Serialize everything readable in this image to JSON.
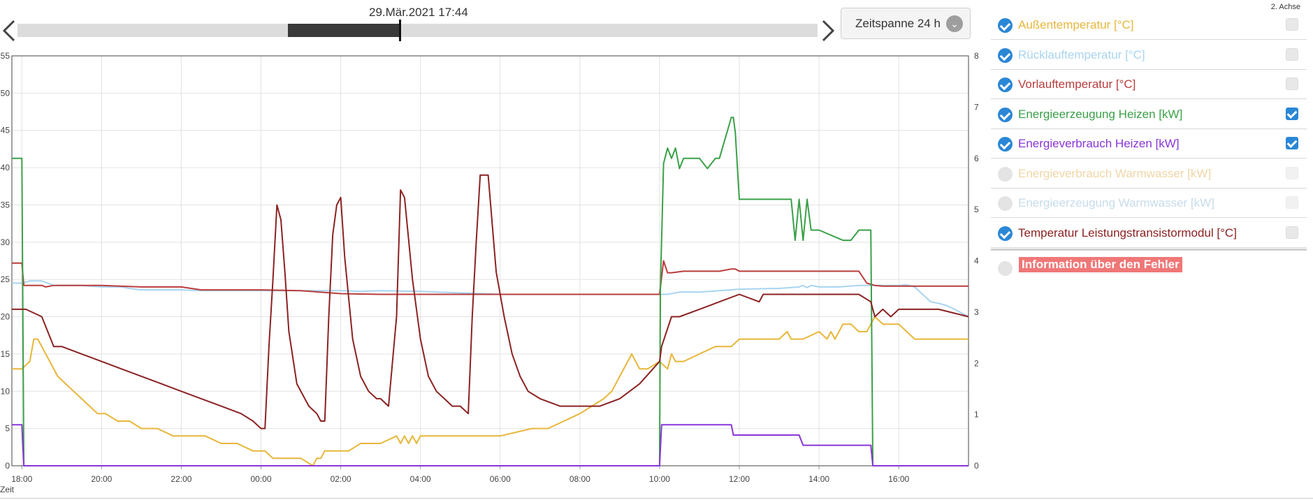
{
  "header": {
    "datetime": "29.Mär.2021 17:44",
    "timespan_label": "Zeitspanne 24 h",
    "prev_icon": "chevron-left-icon",
    "next_icon": "chevron-right-icon",
    "dropdown_icon": "chevron-down-icon",
    "timeline_window": [
      0.338,
      0.478
    ],
    "timeline_cursor": 0.478
  },
  "legend": {
    "axis2_header": "2. Achse",
    "items": [
      {
        "label": "Außentemperatur [°C]",
        "color": "#e8b63a",
        "checked": true,
        "axis2": false,
        "disabled": false
      },
      {
        "label": "Rücklauftemperatur [°C]",
        "color": "#a8d4f0",
        "checked": true,
        "axis2": false,
        "disabled": false
      },
      {
        "label": "Vorlauftemperatur [°C]",
        "color": "#b93c3c",
        "checked": true,
        "axis2": false,
        "disabled": false
      },
      {
        "label": "Energieerzeugung Heizen [kW]",
        "color": "#3aa048",
        "checked": true,
        "axis2": true,
        "disabled": false
      },
      {
        "label": "Energieverbrauch Heizen [kW]",
        "color": "#8a35d8",
        "checked": true,
        "axis2": true,
        "disabled": false
      },
      {
        "label": "Energieverbrauch Warmwasser [kW]",
        "color": "#efd6a6",
        "checked": false,
        "axis2": false,
        "disabled": true
      },
      {
        "label": "Energieerzeugung Warmwasser [kW]",
        "color": "#c6dcea",
        "checked": false,
        "axis2": false,
        "disabled": true
      },
      {
        "label": "Temperatur Leistungstransistormodul [°C]",
        "color": "#8b2222",
        "checked": true,
        "axis2": false,
        "disabled": false
      }
    ],
    "error_label": "Information über den Fehler"
  },
  "chart_data": {
    "type": "line",
    "xlabel": "Zeit",
    "x_ticks": [
      "18:00",
      "20:00",
      "22:00",
      "00:00",
      "02:00",
      "04:00",
      "06:00",
      "08:00",
      "10:00",
      "12:00",
      "14:00",
      "16:00"
    ],
    "xlim": [
      17.75,
      41.75
    ],
    "ylim": [
      0,
      55
    ],
    "yticks": [
      0,
      5,
      10,
      15,
      20,
      25,
      30,
      35,
      40,
      45,
      50,
      55
    ],
    "y2lim": [
      0,
      8
    ],
    "y2ticks": [
      0,
      1,
      2,
      3,
      4,
      5,
      6,
      7,
      8
    ],
    "grid": true,
    "series": [
      {
        "name": "Außentemperatur [°C]",
        "color": "#e8b63a",
        "axis": 1,
        "x": [
          17.75,
          18.0,
          18.2,
          18.3,
          18.4,
          18.5,
          18.7,
          18.9,
          19.1,
          19.3,
          19.5,
          19.7,
          19.9,
          20.1,
          20.4,
          20.7,
          21.0,
          21.4,
          21.8,
          22.2,
          22.6,
          23.0,
          23.4,
          23.8,
          24.0,
          24.1,
          24.3,
          24.6,
          25.0,
          25.3,
          25.4,
          25.5,
          25.6,
          26.2,
          26.5,
          27.0,
          27.4,
          27.5,
          27.6,
          27.7,
          27.8,
          27.9,
          28.0,
          28.2,
          28.4,
          29.0,
          30.0,
          30.8,
          31.2,
          31.6,
          32.0,
          32.3,
          32.6,
          32.8,
          33.0,
          33.2,
          33.3,
          33.5,
          33.7,
          34.0,
          34.2,
          34.3,
          34.4,
          34.6,
          35.0,
          35.4,
          35.6,
          35.8,
          36.0,
          36.5,
          37.0,
          37.2,
          37.3,
          37.4,
          37.6,
          38.0,
          38.2,
          38.3,
          38.4,
          38.6,
          38.8,
          39.0,
          39.2,
          39.4,
          39.6,
          39.8,
          40.0,
          40.2,
          40.4,
          40.6,
          40.8,
          41.0,
          41.75
        ],
        "y": [
          13,
          13,
          14,
          17,
          17,
          16,
          14,
          12,
          11,
          10,
          9,
          8,
          7,
          7,
          6,
          6,
          5,
          5,
          4,
          4,
          4,
          3,
          3,
          2,
          2,
          2,
          1,
          1,
          1,
          0,
          1,
          1,
          2,
          2,
          3,
          3,
          4,
          3,
          4,
          3,
          4,
          3,
          4,
          4,
          4,
          4,
          4,
          5,
          5,
          6,
          7,
          8,
          9,
          10,
          12,
          14,
          15,
          13,
          13,
          14,
          13,
          15,
          14,
          14,
          15,
          16,
          16,
          16,
          17,
          17,
          17,
          18,
          17,
          17,
          17,
          18,
          17,
          18,
          17,
          19,
          19,
          18,
          18,
          20,
          19,
          19,
          19,
          18,
          17,
          17,
          17,
          17,
          17
        ]
      },
      {
        "name": "Rücklauftemperatur [°C]",
        "color": "#a8d4f0",
        "axis": 1,
        "x": [
          17.75,
          18.0,
          18.2,
          18.5,
          18.8,
          19.0,
          19.5,
          20.0,
          20.5,
          20.7,
          21.0,
          21.5,
          22.0,
          22.5,
          23.0,
          24.0,
          25.0,
          26.0,
          26.5,
          27.0,
          28.0,
          29.0,
          30.0,
          31.0,
          32.0,
          33.0,
          34.0,
          34.2,
          34.5,
          35.0,
          35.5,
          36.0,
          37.0,
          37.5,
          37.6,
          37.7,
          37.8,
          38.0,
          38.5,
          39.0,
          40.0,
          40.2,
          40.4,
          40.6,
          40.8,
          41.0,
          41.2,
          41.4,
          41.75
        ],
        "y": [
          24.5,
          24.5,
          24.8,
          24.8,
          24.2,
          24.2,
          24.2,
          24.0,
          24.0,
          23.8,
          23.6,
          23.6,
          23.6,
          23.5,
          23.5,
          23.5,
          23.5,
          23.5,
          23.4,
          23.5,
          23.4,
          23.2,
          23.0,
          23.0,
          23.0,
          23.0,
          23.0,
          23.0,
          23.3,
          23.3,
          23.5,
          23.7,
          23.8,
          24.0,
          24.2,
          23.9,
          24.2,
          24.0,
          24.0,
          24.2,
          24.2,
          24.3,
          24.0,
          23.0,
          22.0,
          21.8,
          21.5,
          21.0,
          20.0
        ]
      },
      {
        "name": "Vorlauftemperatur [°C]",
        "color": "#b93c3c",
        "axis": 1,
        "x": [
          17.75,
          18.0,
          18.05,
          18.3,
          18.5,
          18.6,
          18.8,
          19.0,
          19.5,
          20.0,
          21.0,
          22.0,
          22.5,
          24.0,
          25.0,
          26.0,
          27.0,
          28.0,
          29.0,
          30.0,
          31.0,
          32.0,
          33.0,
          34.0,
          34.1,
          34.2,
          34.3,
          34.6,
          34.8,
          35.0,
          35.5,
          35.8,
          35.9,
          36.0,
          37.0,
          38.0,
          39.0,
          39.2,
          39.4,
          39.6,
          40.0,
          40.5,
          41.0,
          41.75
        ],
        "y": [
          27.2,
          27.2,
          24.2,
          24.2,
          24.2,
          24.0,
          24.2,
          24.2,
          24.2,
          24.2,
          24.0,
          24.0,
          23.6,
          23.6,
          23.5,
          23.1,
          23.0,
          23.0,
          23.0,
          23.0,
          23.0,
          23.0,
          23.0,
          23.0,
          27.5,
          25.9,
          25.9,
          26.1,
          26.1,
          26.1,
          26.1,
          26.4,
          26.4,
          26.1,
          26.1,
          26.1,
          26.1,
          24.5,
          24.2,
          24.1,
          24.1,
          24.1,
          24.1,
          24.1
        ]
      },
      {
        "name": "Energieerzeugung Heizen [kW]",
        "color": "#3aa048",
        "axis": 2,
        "x": [
          17.75,
          18.0,
          18.05,
          34.0,
          34.02,
          34.1,
          34.2,
          34.3,
          34.4,
          34.5,
          34.6,
          34.7,
          34.8,
          35.0,
          35.2,
          35.4,
          35.5,
          35.8,
          35.85,
          35.9,
          36.0,
          37.0,
          37.3,
          37.4,
          37.5,
          37.6,
          37.7,
          37.8,
          38.0,
          38.6,
          38.8,
          39.0,
          39.3,
          39.35,
          41.75
        ],
        "y": [
          6.0,
          6.0,
          0.0,
          0.0,
          3.5,
          5.9,
          6.2,
          6.0,
          6.2,
          5.8,
          6.0,
          6.0,
          6.0,
          6.0,
          5.8,
          6.0,
          6.0,
          6.8,
          6.8,
          6.5,
          5.2,
          5.2,
          5.2,
          4.4,
          5.2,
          4.4,
          5.2,
          4.6,
          4.6,
          4.4,
          4.4,
          4.6,
          4.6,
          0.0,
          0.0
        ]
      },
      {
        "name": "Energieverbrauch Heizen [kW]",
        "color": "#8a35d8",
        "axis": 2,
        "x": [
          17.75,
          18.0,
          18.05,
          34.0,
          34.05,
          35.0,
          35.8,
          35.85,
          36.0,
          37.0,
          37.5,
          37.6,
          38.0,
          39.0,
          39.3,
          39.35,
          41.75
        ],
        "y": [
          0.8,
          0.8,
          0.0,
          0.0,
          0.8,
          0.8,
          0.8,
          0.6,
          0.6,
          0.6,
          0.6,
          0.4,
          0.4,
          0.4,
          0.4,
          0.0,
          0.0
        ]
      },
      {
        "name": "Temperatur Leistungstransistormodul [°C]",
        "color": "#8b2222",
        "axis": 1,
        "x": [
          17.75,
          18.0,
          18.1,
          18.5,
          18.8,
          19.0,
          19.5,
          20.0,
          20.5,
          21.0,
          21.5,
          22.0,
          22.5,
          23.0,
          23.5,
          23.8,
          24.0,
          24.1,
          24.2,
          24.3,
          24.4,
          24.5,
          24.6,
          24.7,
          24.9,
          25.2,
          25.4,
          25.5,
          25.6,
          25.7,
          25.8,
          25.9,
          26.0,
          26.1,
          26.3,
          26.5,
          26.7,
          26.9,
          27.0,
          27.2,
          27.4,
          27.5,
          27.6,
          27.8,
          28.0,
          28.2,
          28.4,
          28.6,
          28.8,
          29.0,
          29.2,
          29.3,
          29.4,
          29.5,
          29.7,
          29.9,
          30.1,
          30.3,
          30.5,
          30.7,
          31.0,
          31.5,
          32.0,
          32.5,
          33.0,
          33.5,
          34.0,
          34.05,
          34.3,
          34.5,
          35.0,
          35.5,
          36.0,
          36.5,
          36.6,
          36.7,
          37.0,
          37.5,
          38.0,
          39.0,
          39.3,
          39.4,
          39.6,
          39.8,
          40.0,
          41.0,
          41.75
        ],
        "y": [
          21,
          21,
          21,
          20,
          16,
          16,
          15,
          14,
          13,
          12,
          11,
          10,
          9,
          8,
          7,
          6,
          5,
          5,
          16,
          25,
          35,
          33,
          26,
          18,
          11,
          8,
          7,
          6,
          6,
          20,
          31,
          35,
          36,
          28,
          17,
          12,
          10,
          9,
          9,
          8,
          20,
          37,
          36,
          25,
          17,
          12,
          10,
          9,
          8,
          8,
          7,
          20,
          30,
          39,
          39,
          26,
          20,
          15,
          12,
          10,
          9,
          8,
          8,
          8,
          9,
          11,
          14,
          16,
          20,
          20,
          21,
          22,
          23,
          22,
          23,
          23,
          23,
          23,
          23,
          23,
          22,
          20,
          21,
          20,
          21,
          21,
          20
        ]
      }
    ]
  }
}
